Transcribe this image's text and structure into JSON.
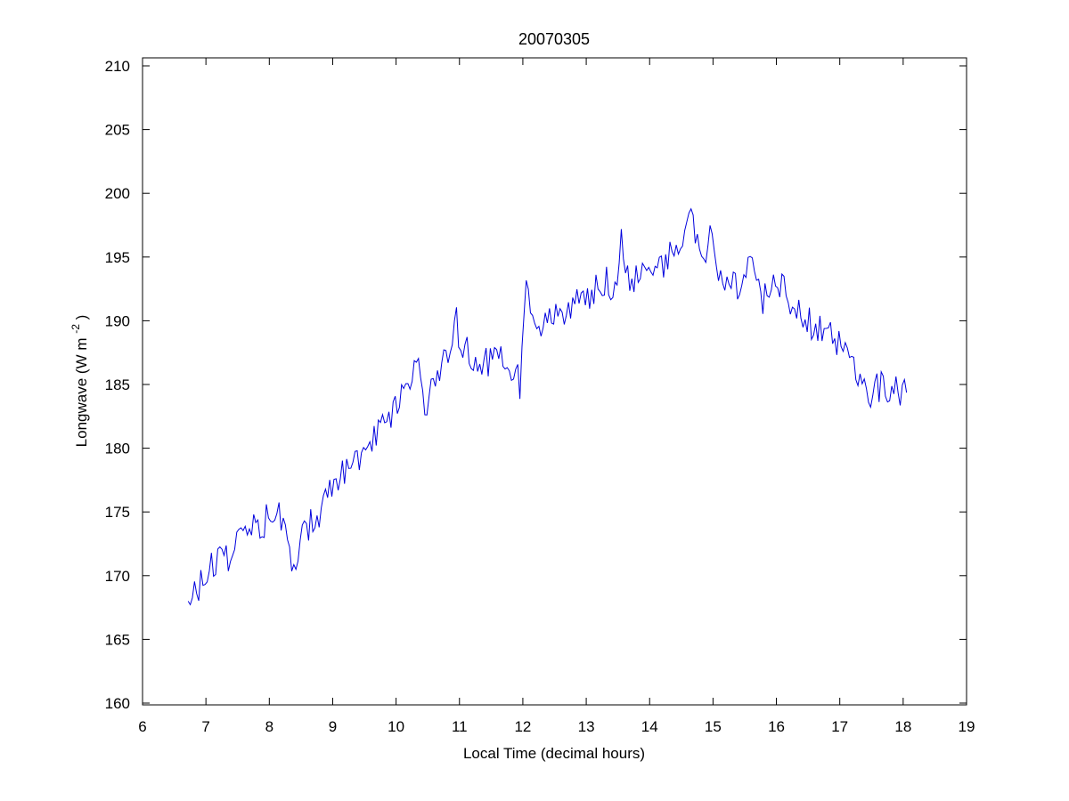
{
  "title": "20070305",
  "axes": {
    "xlabel": "Local Time (decimal hours)",
    "ylabel_main": "Longwave (W m",
    "ylabel_sup": "-2",
    "ylabel_close": ")"
  },
  "chart_data": {
    "type": "line",
    "title": "20070305",
    "xlabel": "Local Time (decimal hours)",
    "ylabel": "Longwave (W m^-2)",
    "xlim": [
      6,
      19
    ],
    "ylim": [
      160,
      210
    ],
    "xticks": [
      6,
      7,
      8,
      9,
      10,
      11,
      12,
      13,
      14,
      15,
      16,
      17,
      18,
      19
    ],
    "yticks": [
      160,
      165,
      170,
      175,
      180,
      185,
      190,
      195,
      200,
      205,
      210
    ],
    "grid": false,
    "legend": null,
    "line_color": "#0000dd",
    "x_start": 6.72,
    "x_end": 18.07,
    "sampling_minutes": 2,
    "noise_amplitude": 1.3,
    "noise_seed": 20070305,
    "trend": [
      [
        6.72,
        168.0
      ],
      [
        6.8,
        169.0
      ],
      [
        6.9,
        169.3
      ],
      [
        7.0,
        170.2
      ],
      [
        7.1,
        170.6
      ],
      [
        7.2,
        171.4
      ],
      [
        7.3,
        171.2
      ],
      [
        7.4,
        172.0
      ],
      [
        7.5,
        173.2
      ],
      [
        7.6,
        174.3
      ],
      [
        7.7,
        174.6
      ],
      [
        7.8,
        173.9
      ],
      [
        7.9,
        174.1
      ],
      [
        8.0,
        174.8
      ],
      [
        8.1,
        175.3
      ],
      [
        8.2,
        174.3
      ],
      [
        8.3,
        172.4
      ],
      [
        8.35,
        170.9
      ],
      [
        8.4,
        171.5
      ],
      [
        8.5,
        172.8
      ],
      [
        8.6,
        173.6
      ],
      [
        8.7,
        174.2
      ],
      [
        8.8,
        175.2
      ],
      [
        8.9,
        176.8
      ],
      [
        9.0,
        177.6
      ],
      [
        9.1,
        177.9
      ],
      [
        9.2,
        178.6
      ],
      [
        9.3,
        178.1
      ],
      [
        9.4,
        179.0
      ],
      [
        9.5,
        180.0
      ],
      [
        9.6,
        180.8
      ],
      [
        9.7,
        181.3
      ],
      [
        9.8,
        181.9
      ],
      [
        9.9,
        182.4
      ],
      [
        10.0,
        183.6
      ],
      [
        10.1,
        184.6
      ],
      [
        10.2,
        185.4
      ],
      [
        10.3,
        186.6
      ],
      [
        10.4,
        186.2
      ],
      [
        10.45,
        181.8
      ],
      [
        10.5,
        184.0
      ],
      [
        10.6,
        185.6
      ],
      [
        10.7,
        186.4
      ],
      [
        10.8,
        187.0
      ],
      [
        10.9,
        188.3
      ],
      [
        10.95,
        190.5
      ],
      [
        11.0,
        188.6
      ],
      [
        11.1,
        187.6
      ],
      [
        11.2,
        187.4
      ],
      [
        11.3,
        187.0
      ],
      [
        11.4,
        186.6
      ],
      [
        11.5,
        187.1
      ],
      [
        11.6,
        187.5
      ],
      [
        11.7,
        186.8
      ],
      [
        11.8,
        185.9
      ],
      [
        11.9,
        187.3
      ],
      [
        11.95,
        183.2
      ],
      [
        12.0,
        189.0
      ],
      [
        12.05,
        192.0
      ],
      [
        12.1,
        191.2
      ],
      [
        12.2,
        190.4
      ],
      [
        12.3,
        189.6
      ],
      [
        12.4,
        190.1
      ],
      [
        12.5,
        190.6
      ],
      [
        12.6,
        190.0
      ],
      [
        12.7,
        190.5
      ],
      [
        12.8,
        191.1
      ],
      [
        12.9,
        191.6
      ],
      [
        13.0,
        191.2
      ],
      [
        13.1,
        192.1
      ],
      [
        13.2,
        192.6
      ],
      [
        13.3,
        193.1
      ],
      [
        13.4,
        192.4
      ],
      [
        13.5,
        194.2
      ],
      [
        13.55,
        197.2
      ],
      [
        13.6,
        194.3
      ],
      [
        13.7,
        193.4
      ],
      [
        13.8,
        193.6
      ],
      [
        13.9,
        194.1
      ],
      [
        14.0,
        194.6
      ],
      [
        14.1,
        193.9
      ],
      [
        14.2,
        194.4
      ],
      [
        14.3,
        195.1
      ],
      [
        14.4,
        195.4
      ],
      [
        14.5,
        196.2
      ],
      [
        14.6,
        197.6
      ],
      [
        14.65,
        200.0
      ],
      [
        14.7,
        196.2
      ],
      [
        14.8,
        195.0
      ],
      [
        14.9,
        195.8
      ],
      [
        14.95,
        197.8
      ],
      [
        15.0,
        195.4
      ],
      [
        15.1,
        193.6
      ],
      [
        15.2,
        193.0
      ],
      [
        15.3,
        193.4
      ],
      [
        15.4,
        192.9
      ],
      [
        15.5,
        193.5
      ],
      [
        15.6,
        194.0
      ],
      [
        15.7,
        192.9
      ],
      [
        15.8,
        191.6
      ],
      [
        15.9,
        192.4
      ],
      [
        16.0,
        193.0
      ],
      [
        16.1,
        192.4
      ],
      [
        16.2,
        191.9
      ],
      [
        16.3,
        190.8
      ],
      [
        16.4,
        190.4
      ],
      [
        16.5,
        189.9
      ],
      [
        16.6,
        189.4
      ],
      [
        16.7,
        189.1
      ],
      [
        16.8,
        189.6
      ],
      [
        16.9,
        188.4
      ],
      [
        17.0,
        188.0
      ],
      [
        17.1,
        187.4
      ],
      [
        17.2,
        186.3
      ],
      [
        17.3,
        185.4
      ],
      [
        17.4,
        184.9
      ],
      [
        17.5,
        184.3
      ],
      [
        17.6,
        184.6
      ],
      [
        17.7,
        185.0
      ],
      [
        17.8,
        184.7
      ],
      [
        17.9,
        184.4
      ],
      [
        18.0,
        184.5
      ],
      [
        18.07,
        184.6
      ]
    ]
  }
}
